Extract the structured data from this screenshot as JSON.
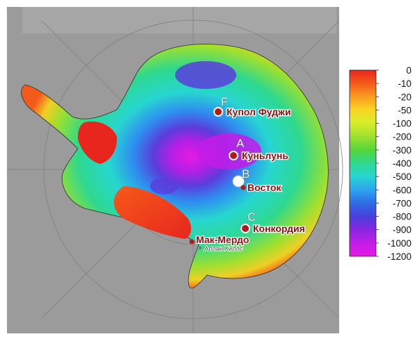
{
  "colorbar": {
    "ticks": [
      "0",
      "-10",
      "-20",
      "-50",
      "-100",
      "-200",
      "-300",
      "-400",
      "-500",
      "-600",
      "-700",
      "-800",
      "-900",
      "-1000",
      "-1200"
    ],
    "colors": [
      "#e8261e",
      "#f45a1a",
      "#f89a1e",
      "#fbd325",
      "#d8ee2a",
      "#9be030",
      "#54d63b",
      "#2ed88f",
      "#27d6d0",
      "#2ea6f0",
      "#2e6ee6",
      "#4a3ddc",
      "#8a26e0",
      "#c41ce8",
      "#e61ae6"
    ]
  },
  "colors": {
    "background": "#9b9b9b",
    "marker_fill": "#b11a1a",
    "label_red": "#8b0f0f"
  },
  "sites": [
    {
      "letter": "F",
      "name": "Купол Фуджи",
      "kind": "ring"
    },
    {
      "letter": "A",
      "name": "Куньлунь",
      "kind": "ring"
    },
    {
      "letter": "B",
      "name": "Восток",
      "kind": "dot"
    },
    {
      "letter": "C",
      "name": "Конкордия",
      "kind": "ring"
    },
    {
      "letter": "",
      "name": "Мак-Мердо",
      "kind": "dot"
    }
  ],
  "minor_site": {
    "name": "Аллан Хиллс"
  }
}
